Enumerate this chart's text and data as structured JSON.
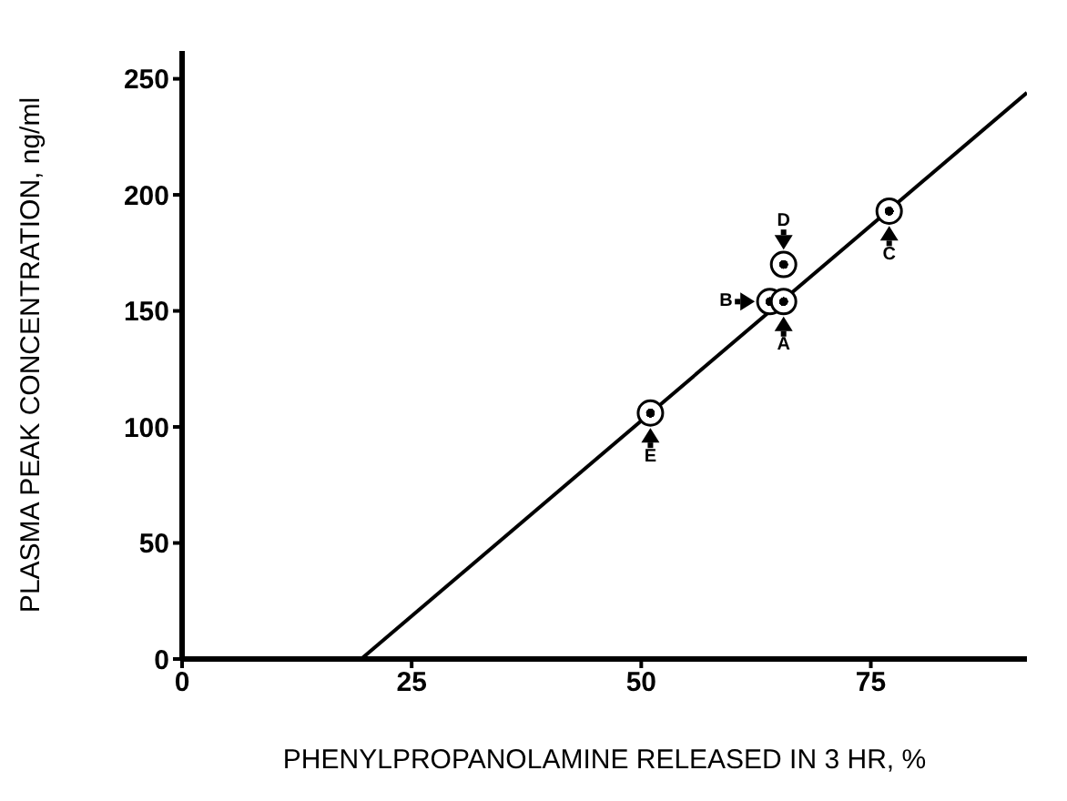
{
  "chart_data": {
    "type": "scatter",
    "xlabel": "PHENYLPROPANOLAMINE RELEASED IN 3 HR, %",
    "ylabel": "PLASMA PEAK CONCENTRATION, ng/ml",
    "series": [
      {
        "color": "#000000",
        "x": [
          51,
          64,
          65.5,
          65.5,
          77
        ],
        "values": [
          106,
          154,
          154,
          170,
          193
        ],
        "marker": "circle"
      },
      {
        "type": "line",
        "color": "#000000",
        "x": [
          19.5,
          92
        ],
        "values": [
          0,
          244
        ],
        "marker": "none"
      }
    ],
    "xlim": [
      0,
      92
    ],
    "ylim": [
      0,
      262
    ],
    "xticks": [
      0,
      25,
      50,
      75
    ],
    "yticks": [
      0,
      50,
      100,
      150,
      200,
      250
    ],
    "grid": false,
    "annotations": [
      {
        "text": "A",
        "x": 65.5,
        "y": 154
      },
      {
        "text": "B",
        "x": 64,
        "y": 154
      },
      {
        "text": "C",
        "x": 77,
        "y": 193
      },
      {
        "text": "D",
        "x": 65.5,
        "y": 170
      },
      {
        "text": "E",
        "x": 51,
        "y": 106
      }
    ]
  }
}
